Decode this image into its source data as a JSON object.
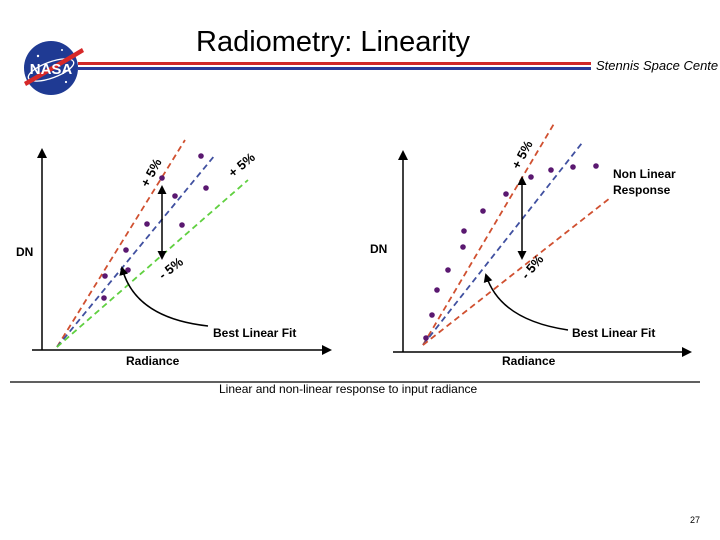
{
  "header": {
    "title": "Radiometry: Linearity",
    "subtitle": "Stennis Space Cente",
    "logo_text": "NASA"
  },
  "colors": {
    "stripe_red": "#d02828",
    "stripe_blue": "#2a3a9a",
    "tolerance_line": "#d05030",
    "fit_line": "#4050a0",
    "lower_line": "#60d040",
    "points": "#5a1870"
  },
  "left_plot": {
    "y_axis_label": "DN",
    "x_axis_label": "Radiance",
    "plus_label": "+ 5%",
    "plus_label_2": "+ 5%",
    "minus_label": "- 5%",
    "fit_label": "Best Linear Fit"
  },
  "right_plot": {
    "y_axis_label": "DN",
    "x_axis_label": "Radiance",
    "plus_label": "+ 5%",
    "minus_label": "- 5%",
    "curve_label_line1": "Non Linear",
    "curve_label_line2": "Response",
    "fit_label": "Best Linear Fit"
  },
  "caption": "Linear and non-linear response to input radiance",
  "page_number": "27"
}
